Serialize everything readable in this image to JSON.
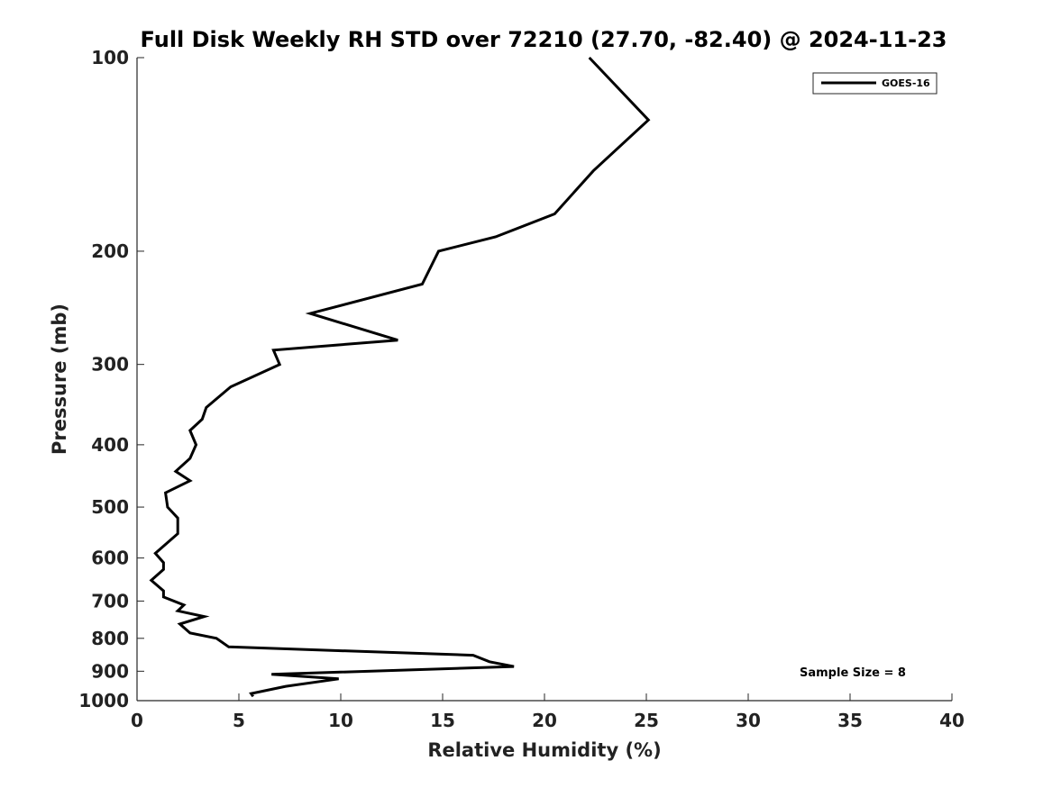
{
  "chart_data": {
    "type": "line",
    "title": "Full Disk Weekly RH STD over 72210 (27.70, -82.40) @ 2024-11-23",
    "xlabel": "Relative Humidity (%)",
    "ylabel": "Pressure (mb)",
    "xlim": [
      0,
      40
    ],
    "ylim": [
      100,
      1000
    ],
    "yscale": "log",
    "y_inverted": true,
    "x_ticks": [
      0,
      5,
      10,
      15,
      20,
      25,
      30,
      35,
      40
    ],
    "y_ticks": [
      100,
      200,
      300,
      400,
      500,
      600,
      700,
      800,
      900,
      1000
    ],
    "legend": {
      "entries": [
        "GOES-16"
      ],
      "placement": "top-right"
    },
    "annotations": [
      {
        "text": "Sample Size = 8",
        "placement": "bottom-right"
      }
    ],
    "series": [
      {
        "name": "GOES-16",
        "color": "#000000",
        "points": [
          [
            22.2,
            100
          ],
          [
            25.1,
            125
          ],
          [
            22.4,
            150
          ],
          [
            20.5,
            175
          ],
          [
            17.6,
            190
          ],
          [
            14.8,
            200
          ],
          [
            14.0,
            225
          ],
          [
            8.5,
            250
          ],
          [
            12.8,
            275
          ],
          [
            6.7,
            285
          ],
          [
            7.0,
            300
          ],
          [
            4.6,
            325
          ],
          [
            3.4,
            350
          ],
          [
            3.2,
            365
          ],
          [
            2.6,
            380
          ],
          [
            2.9,
            400
          ],
          [
            2.6,
            420
          ],
          [
            1.9,
            440
          ],
          [
            2.6,
            455
          ],
          [
            1.4,
            475
          ],
          [
            1.5,
            500
          ],
          [
            2.0,
            520
          ],
          [
            2.0,
            550
          ],
          [
            0.9,
            590
          ],
          [
            1.3,
            610
          ],
          [
            1.3,
            625
          ],
          [
            0.7,
            650
          ],
          [
            1.3,
            675
          ],
          [
            1.3,
            690
          ],
          [
            2.3,
            710
          ],
          [
            2.0,
            725
          ],
          [
            3.3,
            740
          ],
          [
            2.1,
            760
          ],
          [
            2.6,
            785
          ],
          [
            3.9,
            800
          ],
          [
            4.5,
            825
          ],
          [
            16.5,
            850
          ],
          [
            17.3,
            870
          ],
          [
            18.5,
            885
          ],
          [
            6.6,
            910
          ],
          [
            9.9,
            925
          ],
          [
            7.3,
            950
          ],
          [
            5.6,
            975
          ],
          [
            5.7,
            985
          ]
        ]
      }
    ]
  }
}
